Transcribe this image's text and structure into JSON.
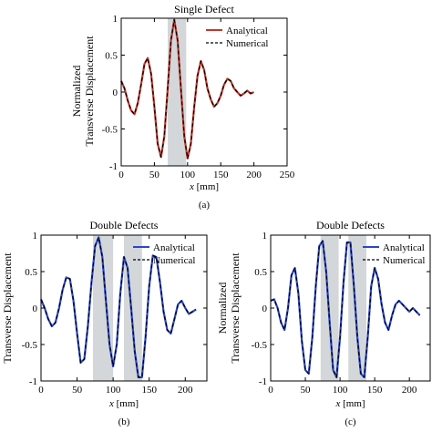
{
  "chart_data": [
    {
      "type": "line",
      "title": "Single Defect",
      "panel_label": "(a)",
      "xlabel_var": "x",
      "xlabel_unit": "[mm]",
      "ylabel": [
        "Normalized",
        "Transverse Displacement"
      ],
      "xlim": [
        0,
        250
      ],
      "ylim": [
        -1,
        1
      ],
      "xticks": [
        0,
        50,
        100,
        150,
        200,
        250
      ],
      "yticks": [
        -1,
        -0.5,
        0,
        0.5,
        1
      ],
      "shaded_regions": [
        [
          70,
          98
        ]
      ],
      "legend_position": "top-right",
      "series": [
        {
          "name": "Analytical",
          "style": "solid",
          "color": "#c0392b"
        },
        {
          "name": "Numerical",
          "style": "dashed",
          "color": "#000000"
        }
      ],
      "x": [
        0,
        5,
        10,
        15,
        20,
        25,
        30,
        35,
        40,
        45,
        50,
        55,
        60,
        65,
        70,
        75,
        80,
        85,
        90,
        95,
        100,
        105,
        110,
        115,
        120,
        125,
        130,
        135,
        140,
        145,
        150,
        155,
        160,
        165,
        170,
        175,
        180,
        185,
        190,
        195,
        200
      ],
      "y": [
        0.15,
        0.05,
        -0.12,
        -0.25,
        -0.3,
        -0.15,
        0.1,
        0.38,
        0.46,
        0.25,
        -0.2,
        -0.7,
        -0.88,
        -0.6,
        0.05,
        0.7,
        0.98,
        0.7,
        0.05,
        -0.6,
        -0.9,
        -0.7,
        -0.2,
        0.22,
        0.42,
        0.3,
        0.05,
        -0.1,
        -0.2,
        -0.15,
        -0.05,
        0.1,
        0.18,
        0.15,
        0.05,
        0.0,
        -0.05,
        -0.02,
        0.02,
        -0.02,
        0.0
      ]
    },
    {
      "type": "line",
      "title": "Double Defects",
      "panel_label": "(b)",
      "xlabel_var": "x",
      "xlabel_unit": "[mm]",
      "ylabel": [
        "Transverse Displacement"
      ],
      "xlim": [
        0,
        230
      ],
      "ylim": [
        -1,
        1
      ],
      "xticks": [
        0,
        50,
        100,
        150,
        200
      ],
      "yticks": [
        -1,
        -0.5,
        0,
        0.5,
        1
      ],
      "shaded_regions": [
        [
          72,
          100
        ],
        [
          115,
          140
        ]
      ],
      "legend_position": "top-right",
      "series": [
        {
          "name": "Analytical",
          "style": "solid",
          "color": "#2b47c9"
        },
        {
          "name": "Numerical",
          "style": "dashed",
          "color": "#000000"
        }
      ],
      "x": [
        0,
        5,
        10,
        15,
        20,
        25,
        30,
        35,
        40,
        45,
        50,
        55,
        60,
        65,
        70,
        75,
        80,
        85,
        90,
        95,
        100,
        105,
        110,
        115,
        120,
        125,
        130,
        135,
        140,
        145,
        150,
        155,
        160,
        165,
        170,
        175,
        180,
        185,
        190,
        195,
        200,
        205,
        210,
        215
      ],
      "y": [
        0.12,
        0.0,
        -0.15,
        -0.25,
        -0.2,
        0.0,
        0.25,
        0.42,
        0.4,
        0.1,
        -0.35,
        -0.75,
        -0.7,
        -0.25,
        0.35,
        0.85,
        0.97,
        0.7,
        0.1,
        -0.5,
        -0.8,
        -0.5,
        0.2,
        0.7,
        0.55,
        0.0,
        -0.6,
        -0.95,
        -0.95,
        -0.4,
        0.3,
        0.72,
        0.7,
        0.35,
        -0.05,
        -0.3,
        -0.35,
        -0.15,
        0.05,
        0.1,
        0.0,
        -0.08,
        -0.05,
        -0.02
      ]
    },
    {
      "type": "line",
      "title": "Double Defects",
      "panel_label": "(c)",
      "xlabel_var": "x",
      "xlabel_unit": "[mm]",
      "ylabel": [
        "Normalized",
        "Transverse Displacement"
      ],
      "xlim": [
        0,
        230
      ],
      "ylim": [
        -1,
        1
      ],
      "xticks": [
        0,
        50,
        100,
        150,
        200
      ],
      "yticks": [
        -1,
        -0.5,
        0,
        0.5,
        1
      ],
      "shaded_regions": [
        [
          72,
          98
        ],
        [
          112,
          138
        ]
      ],
      "legend_position": "top-right",
      "series": [
        {
          "name": "Analytical",
          "style": "solid",
          "color": "#2b47c9"
        },
        {
          "name": "Numerical",
          "style": "dashed",
          "color": "#000000"
        }
      ],
      "x": [
        0,
        5,
        10,
        15,
        20,
        25,
        30,
        35,
        40,
        45,
        50,
        55,
        60,
        65,
        70,
        75,
        80,
        85,
        90,
        95,
        100,
        105,
        110,
        115,
        120,
        125,
        130,
        135,
        140,
        145,
        150,
        155,
        160,
        165,
        170,
        175,
        180,
        185,
        190,
        195,
        200,
        205,
        210,
        215
      ],
      "y": [
        0.1,
        0.12,
        0.0,
        -0.2,
        -0.3,
        0.0,
        0.45,
        0.55,
        0.2,
        -0.45,
        -0.85,
        -0.9,
        -0.4,
        0.3,
        0.85,
        0.92,
        0.5,
        -0.2,
        -0.85,
        -0.95,
        -0.4,
        0.35,
        0.9,
        0.9,
        0.3,
        -0.4,
        -0.9,
        -0.95,
        -0.4,
        0.3,
        0.55,
        0.4,
        0.05,
        -0.2,
        -0.3,
        -0.1,
        0.05,
        0.1,
        0.05,
        0.0,
        -0.05,
        0.0,
        -0.05,
        -0.1
      ]
    }
  ]
}
